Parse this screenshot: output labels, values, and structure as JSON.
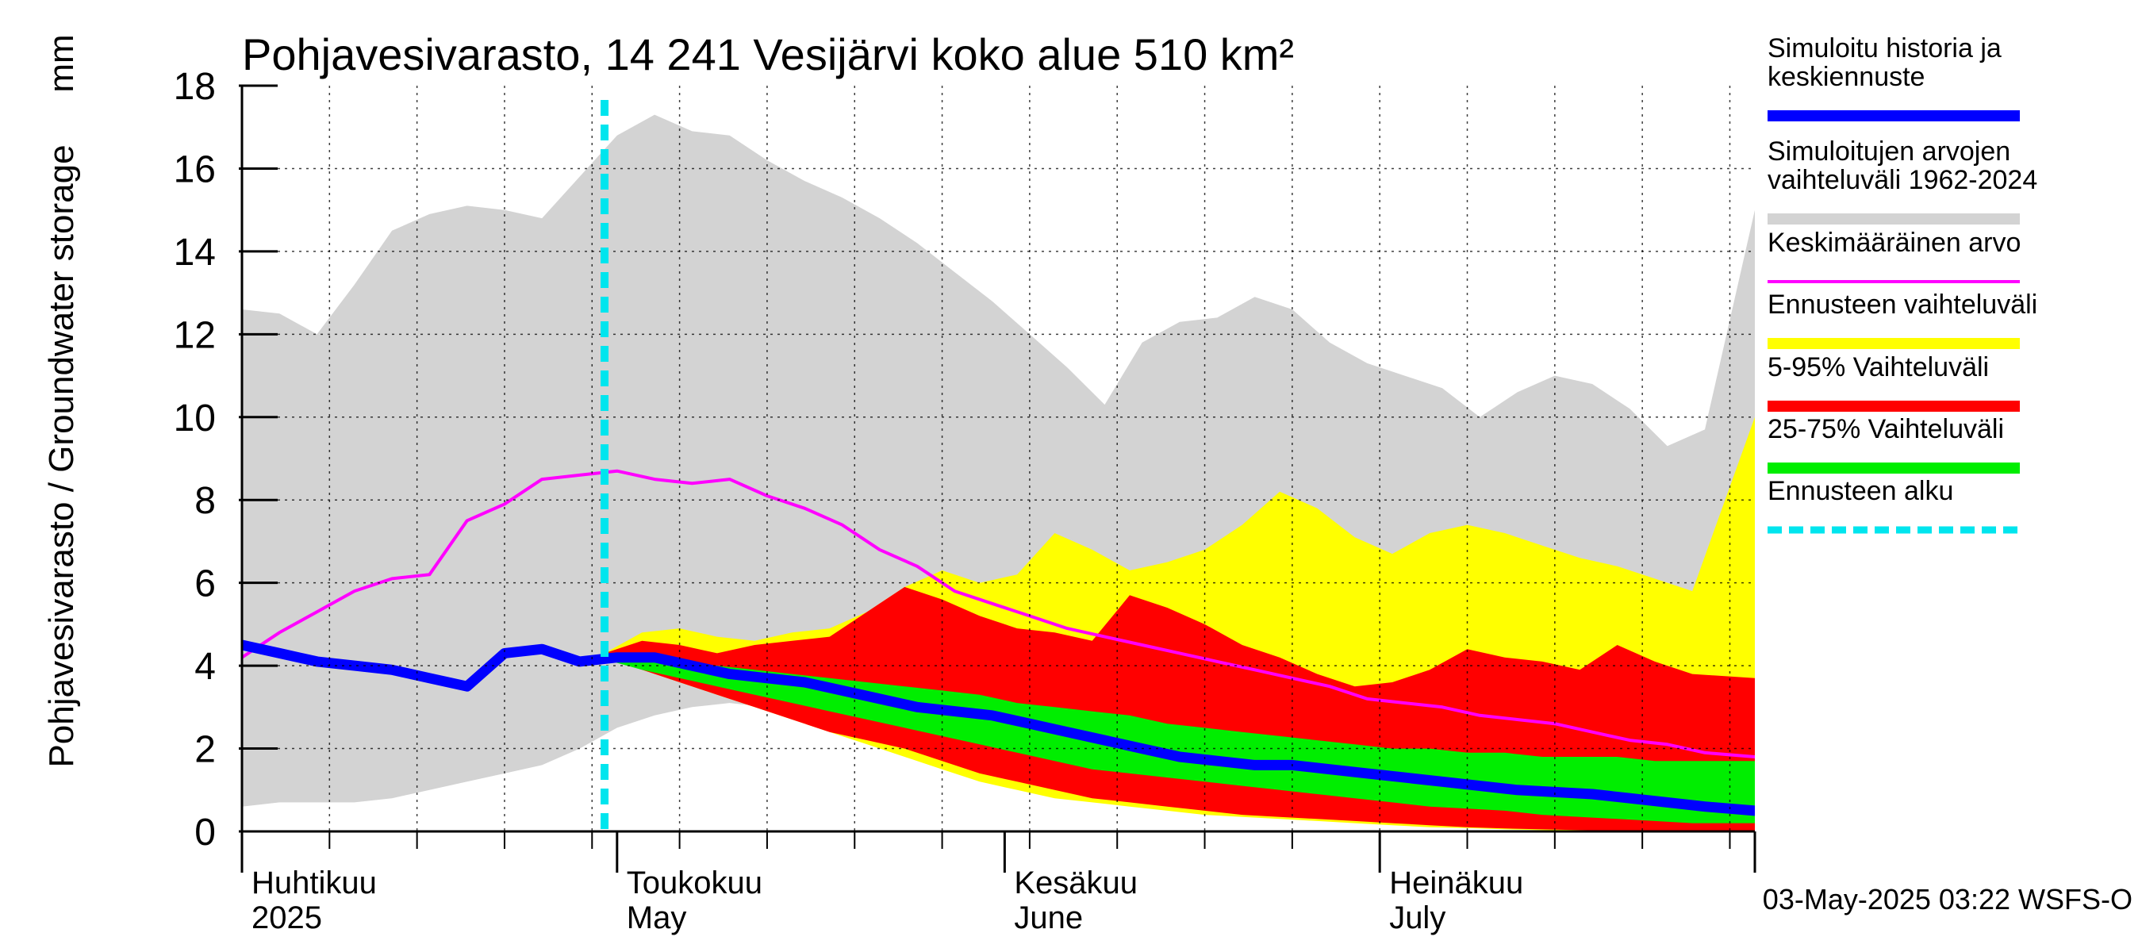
{
  "chart_data": {
    "type": "area",
    "title": "Pohjavesivarasto, 14 241 Vesijärvi koko alue 510 km²",
    "ylabel": "Pohjavesivarasto / Groundwater storage",
    "yunit": "mm",
    "ylim": [
      0,
      18
    ],
    "yticks": [
      "0",
      "2",
      "4",
      "6",
      "8",
      "10",
      "12",
      "14",
      "16",
      "18"
    ],
    "x_start": "2025-04-01",
    "x_end": "2025-07-31",
    "grid": true,
    "months": [
      {
        "fi": "Huhtikuu",
        "en": "2025",
        "start": "2025-04-01"
      },
      {
        "fi": "Toukokuu",
        "en": "May",
        "start": "2025-05-01"
      },
      {
        "fi": "Kesäkuu",
        "en": "June",
        "start": "2025-06-01"
      },
      {
        "fi": "Heinäkuu",
        "en": "July",
        "start": "2025-07-01"
      }
    ],
    "forecast_start": "2025-04-30",
    "timestamp": "03-May-2025 03:22 WSFS-O",
    "legend_position": "right",
    "legend": [
      {
        "label": "Simuloitu historia ja keskiennuste",
        "color": "#0000ff",
        "style": "thick"
      },
      {
        "label": "Simuloitujen arvojen vaihteluväli 1962-2024",
        "color": "#d3d3d3",
        "style": "thick"
      },
      {
        "label": "Keskimääräinen arvo",
        "color": "#ff00ff",
        "style": "thin"
      },
      {
        "label": "Ennusteen vaihteluväli",
        "color": "#ffff00",
        "style": "thick"
      },
      {
        "label": "5-95% Vaihteluväli",
        "color": "#ff0000",
        "style": "thick"
      },
      {
        "label": "25-75% Vaihteluväli",
        "color": "#00ee00",
        "style": "thick"
      },
      {
        "label": "Ennusteen alku",
        "color": "#00e5ee",
        "style": "dashed"
      }
    ],
    "colors": {
      "history_range": "#d3d3d3",
      "forecast_range": "#ffff00",
      "p5_95": "#ff0000",
      "p25_75": "#00ee00",
      "mean": "#ff00ff",
      "median": "#0000ff",
      "forecast_start": "#00e5ee"
    },
    "series": [
      {
        "name": "Simuloitujen arvojen vaihteluväli 1962-2024",
        "type": "band",
        "x": [
          "2025-04-01",
          "2025-04-04",
          "2025-04-07",
          "2025-04-10",
          "2025-04-13",
          "2025-04-16",
          "2025-04-19",
          "2025-04-22",
          "2025-04-25",
          "2025-04-28",
          "2025-05-01",
          "2025-05-04",
          "2025-05-07",
          "2025-05-10",
          "2025-05-13",
          "2025-05-16",
          "2025-05-19",
          "2025-05-22",
          "2025-05-25",
          "2025-05-28",
          "2025-05-31",
          "2025-06-03",
          "2025-06-06",
          "2025-06-09",
          "2025-06-12",
          "2025-06-15",
          "2025-06-18",
          "2025-06-21",
          "2025-06-24",
          "2025-06-27",
          "2025-06-30",
          "2025-07-03",
          "2025-07-06",
          "2025-07-09",
          "2025-07-12",
          "2025-07-15",
          "2025-07-18",
          "2025-07-21",
          "2025-07-24",
          "2025-07-27",
          "2025-07-31"
        ],
        "upper": [
          12.6,
          12.5,
          12.0,
          13.2,
          14.5,
          14.9,
          15.1,
          15.0,
          14.8,
          15.8,
          16.8,
          17.3,
          16.9,
          16.8,
          16.2,
          15.7,
          15.3,
          14.8,
          14.2,
          13.5,
          12.8,
          12.0,
          11.2,
          10.3,
          11.8,
          12.3,
          12.4,
          12.9,
          12.6,
          11.8,
          11.3,
          11.0,
          10.7,
          10.0,
          10.6,
          11.0,
          10.8,
          10.2,
          9.3,
          9.7,
          15.0
        ],
        "lower": [
          0.6,
          0.7,
          0.7,
          0.7,
          0.8,
          1.0,
          1.2,
          1.4,
          1.6,
          2.0,
          2.5,
          2.8,
          3.0,
          3.1,
          3.0,
          3.1,
          3.0,
          2.7,
          2.4,
          2.2,
          2.0,
          1.8,
          1.6,
          1.4,
          1.2,
          1.0,
          0.9,
          0.8,
          0.7,
          0.6,
          0.5,
          0.45,
          0.4,
          0.35,
          0.3,
          0.25,
          0.2,
          0.15,
          0.1,
          0.06,
          0.05
        ]
      },
      {
        "name": "Ennusteen vaihteluväli",
        "type": "band",
        "x": [
          "2025-04-30",
          "2025-05-03",
          "2025-05-06",
          "2025-05-09",
          "2025-05-12",
          "2025-05-15",
          "2025-05-18",
          "2025-05-21",
          "2025-05-24",
          "2025-05-27",
          "2025-05-30",
          "2025-06-02",
          "2025-06-05",
          "2025-06-08",
          "2025-06-11",
          "2025-06-14",
          "2025-06-17",
          "2025-06-20",
          "2025-06-23",
          "2025-06-26",
          "2025-06-29",
          "2025-07-02",
          "2025-07-05",
          "2025-07-08",
          "2025-07-11",
          "2025-07-14",
          "2025-07-17",
          "2025-07-20",
          "2025-07-23",
          "2025-07-26",
          "2025-07-31"
        ],
        "upper": [
          4.3,
          4.8,
          4.9,
          4.7,
          4.6,
          4.8,
          4.9,
          5.3,
          5.9,
          6.3,
          6.0,
          6.2,
          7.2,
          6.8,
          6.3,
          6.5,
          6.8,
          7.4,
          8.2,
          7.8,
          7.1,
          6.7,
          7.2,
          7.4,
          7.2,
          6.9,
          6.6,
          6.4,
          6.1,
          5.8,
          10.0
        ],
        "lower": [
          4.2,
          3.9,
          3.6,
          3.3,
          3.0,
          2.7,
          2.4,
          2.1,
          1.8,
          1.5,
          1.2,
          1.0,
          0.8,
          0.7,
          0.6,
          0.5,
          0.4,
          0.35,
          0.3,
          0.25,
          0.2,
          0.15,
          0.1,
          0.08,
          0.05,
          0.03,
          0.02,
          0.0,
          0.0,
          0.0,
          0.0
        ]
      },
      {
        "name": "5-95% Vaihteluväli",
        "type": "band",
        "x": [
          "2025-04-30",
          "2025-05-03",
          "2025-05-06",
          "2025-05-09",
          "2025-05-12",
          "2025-05-15",
          "2025-05-18",
          "2025-05-21",
          "2025-05-24",
          "2025-05-27",
          "2025-05-30",
          "2025-06-02",
          "2025-06-05",
          "2025-06-08",
          "2025-06-11",
          "2025-06-14",
          "2025-06-17",
          "2025-06-20",
          "2025-06-23",
          "2025-06-26",
          "2025-06-29",
          "2025-07-02",
          "2025-07-05",
          "2025-07-08",
          "2025-07-11",
          "2025-07-14",
          "2025-07-17",
          "2025-07-20",
          "2025-07-23",
          "2025-07-26",
          "2025-07-31"
        ],
        "upper": [
          4.3,
          4.6,
          4.5,
          4.3,
          4.5,
          4.6,
          4.7,
          5.3,
          5.9,
          5.6,
          5.2,
          4.9,
          4.8,
          4.6,
          5.7,
          5.4,
          5.0,
          4.5,
          4.2,
          3.8,
          3.5,
          3.6,
          3.9,
          4.4,
          4.2,
          4.1,
          3.9,
          4.5,
          4.1,
          3.8,
          3.7
        ],
        "lower": [
          4.2,
          3.9,
          3.6,
          3.3,
          3.0,
          2.7,
          2.4,
          2.2,
          2.0,
          1.7,
          1.4,
          1.2,
          1.0,
          0.8,
          0.7,
          0.6,
          0.5,
          0.4,
          0.35,
          0.3,
          0.25,
          0.2,
          0.15,
          0.1,
          0.07,
          0.05,
          0.03,
          0.02,
          0.01,
          0.0,
          0.0
        ]
      },
      {
        "name": "25-75% Vaihteluväli",
        "type": "band",
        "x": [
          "2025-04-30",
          "2025-05-03",
          "2025-05-06",
          "2025-05-09",
          "2025-05-12",
          "2025-05-15",
          "2025-05-18",
          "2025-05-21",
          "2025-05-24",
          "2025-05-27",
          "2025-05-30",
          "2025-06-02",
          "2025-06-05",
          "2025-06-08",
          "2025-06-11",
          "2025-06-14",
          "2025-06-17",
          "2025-06-20",
          "2025-06-23",
          "2025-06-26",
          "2025-06-29",
          "2025-07-02",
          "2025-07-05",
          "2025-07-08",
          "2025-07-11",
          "2025-07-14",
          "2025-07-17",
          "2025-07-20",
          "2025-07-23",
          "2025-07-26",
          "2025-07-31"
        ],
        "upper": [
          4.25,
          4.2,
          4.1,
          4.0,
          3.9,
          3.8,
          3.7,
          3.6,
          3.5,
          3.4,
          3.3,
          3.1,
          3.0,
          2.9,
          2.8,
          2.6,
          2.5,
          2.4,
          2.3,
          2.2,
          2.1,
          2.0,
          2.0,
          1.9,
          1.9,
          1.8,
          1.8,
          1.8,
          1.7,
          1.7,
          1.7
        ],
        "lower": [
          4.15,
          3.9,
          3.7,
          3.5,
          3.3,
          3.1,
          2.9,
          2.7,
          2.5,
          2.3,
          2.1,
          1.9,
          1.7,
          1.5,
          1.4,
          1.3,
          1.2,
          1.1,
          1.0,
          0.9,
          0.8,
          0.7,
          0.6,
          0.55,
          0.5,
          0.4,
          0.35,
          0.3,
          0.25,
          0.2,
          0.2
        ]
      },
      {
        "name": "Keskimääräinen arvo",
        "type": "line",
        "x": [
          "2025-04-01",
          "2025-04-04",
          "2025-04-07",
          "2025-04-10",
          "2025-04-13",
          "2025-04-16",
          "2025-04-19",
          "2025-04-22",
          "2025-04-25",
          "2025-04-28",
          "2025-05-01",
          "2025-05-04",
          "2025-05-07",
          "2025-05-10",
          "2025-05-13",
          "2025-05-16",
          "2025-05-19",
          "2025-05-22",
          "2025-05-25",
          "2025-05-28",
          "2025-05-31",
          "2025-06-03",
          "2025-06-06",
          "2025-06-09",
          "2025-06-12",
          "2025-06-15",
          "2025-06-18",
          "2025-06-21",
          "2025-06-24",
          "2025-06-27",
          "2025-06-30",
          "2025-07-03",
          "2025-07-06",
          "2025-07-09",
          "2025-07-12",
          "2025-07-15",
          "2025-07-18",
          "2025-07-21",
          "2025-07-24",
          "2025-07-27",
          "2025-07-31"
        ],
        "values": [
          4.2,
          4.8,
          5.3,
          5.8,
          6.1,
          6.2,
          7.5,
          7.9,
          8.5,
          8.6,
          8.7,
          8.5,
          8.4,
          8.5,
          8.1,
          7.8,
          7.4,
          6.8,
          6.4,
          5.8,
          5.5,
          5.2,
          4.9,
          4.7,
          4.5,
          4.3,
          4.1,
          3.9,
          3.7,
          3.5,
          3.2,
          3.1,
          3.0,
          2.8,
          2.7,
          2.6,
          2.4,
          2.2,
          2.1,
          1.9,
          1.8
        ]
      },
      {
        "name": "Simuloitu historia ja keskiennuste",
        "type": "line",
        "x": [
          "2025-04-01",
          "2025-04-04",
          "2025-04-07",
          "2025-04-10",
          "2025-04-13",
          "2025-04-16",
          "2025-04-19",
          "2025-04-22",
          "2025-04-25",
          "2025-04-28",
          "2025-05-01",
          "2025-05-04",
          "2025-05-07",
          "2025-05-10",
          "2025-05-13",
          "2025-05-16",
          "2025-05-19",
          "2025-05-22",
          "2025-05-25",
          "2025-05-28",
          "2025-05-31",
          "2025-06-03",
          "2025-06-06",
          "2025-06-09",
          "2025-06-12",
          "2025-06-15",
          "2025-06-18",
          "2025-06-21",
          "2025-06-24",
          "2025-06-27",
          "2025-06-30",
          "2025-07-03",
          "2025-07-06",
          "2025-07-09",
          "2025-07-12",
          "2025-07-15",
          "2025-07-18",
          "2025-07-21",
          "2025-07-24",
          "2025-07-27",
          "2025-07-31"
        ],
        "values": [
          4.5,
          4.3,
          4.1,
          4.0,
          3.9,
          3.7,
          3.5,
          4.3,
          4.4,
          4.1,
          4.2,
          4.2,
          4.0,
          3.8,
          3.7,
          3.6,
          3.4,
          3.2,
          3.0,
          2.9,
          2.8,
          2.6,
          2.4,
          2.2,
          2.0,
          1.8,
          1.7,
          1.6,
          1.6,
          1.5,
          1.4,
          1.3,
          1.2,
          1.1,
          1.0,
          0.95,
          0.9,
          0.8,
          0.7,
          0.6,
          0.5
        ]
      }
    ]
  }
}
